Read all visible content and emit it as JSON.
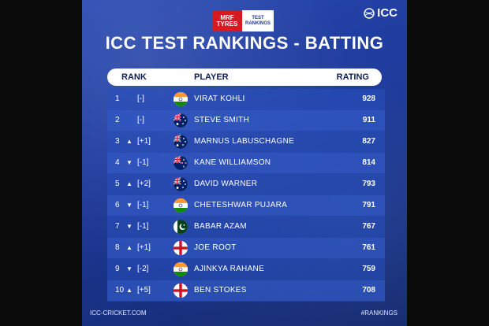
{
  "sponsor": {
    "mrf": "MRF TYRES",
    "rankings": "TEST RANKINGS"
  },
  "brand": "ICC",
  "title": "ICC TEST RANKINGS - BATTING",
  "columns": {
    "rank": "RANK",
    "player": "PLAYER",
    "rating": "RATING"
  },
  "colors": {
    "background": "#1e3a9c",
    "header_bg": "#ffffff",
    "row_alt": "#3c64d2"
  },
  "rows": [
    {
      "rank": "1",
      "arrow": "",
      "move": "[-]",
      "country": "india",
      "flag_icon": "india-flag-icon",
      "name": "Virat Kohli",
      "rating": "928"
    },
    {
      "rank": "2",
      "arrow": "",
      "move": "[-]",
      "country": "australia",
      "flag_icon": "australia-flag-icon",
      "name": "Steve Smith",
      "rating": "911"
    },
    {
      "rank": "3",
      "arrow": "▲",
      "move": "[+1]",
      "country": "australia",
      "flag_icon": "australia-flag-icon",
      "name": "Marnus Labuschagne",
      "rating": "827"
    },
    {
      "rank": "4",
      "arrow": "▼",
      "move": "[-1]",
      "country": "new-zealand",
      "flag_icon": "new-zealand-flag-icon",
      "name": "Kane Williamson",
      "rating": "814"
    },
    {
      "rank": "5",
      "arrow": "▲",
      "move": "[+2]",
      "country": "australia",
      "flag_icon": "australia-flag-icon",
      "name": "David Warner",
      "rating": "793"
    },
    {
      "rank": "6",
      "arrow": "▼",
      "move": "[-1]",
      "country": "india",
      "flag_icon": "india-flag-icon",
      "name": "Cheteshwar Pujara",
      "rating": "791"
    },
    {
      "rank": "7",
      "arrow": "▼",
      "move": "[-1]",
      "country": "pakistan",
      "flag_icon": "pakistan-flag-icon",
      "name": "Babar Azam",
      "rating": "767"
    },
    {
      "rank": "8",
      "arrow": "▲",
      "move": "[+1]",
      "country": "england",
      "flag_icon": "england-flag-icon",
      "name": "Joe Root",
      "rating": "761"
    },
    {
      "rank": "9",
      "arrow": "▼",
      "move": "[-2]",
      "country": "india",
      "flag_icon": "india-flag-icon",
      "name": "Ajinkya Rahane",
      "rating": "759"
    },
    {
      "rank": "10",
      "arrow": "▲",
      "move": "[+5]",
      "country": "england",
      "flag_icon": "england-flag-icon",
      "name": "Ben Stokes",
      "rating": "708"
    }
  ],
  "footer": {
    "left": "ICC-CRICKET.COM",
    "right": "#RANKINGS"
  }
}
